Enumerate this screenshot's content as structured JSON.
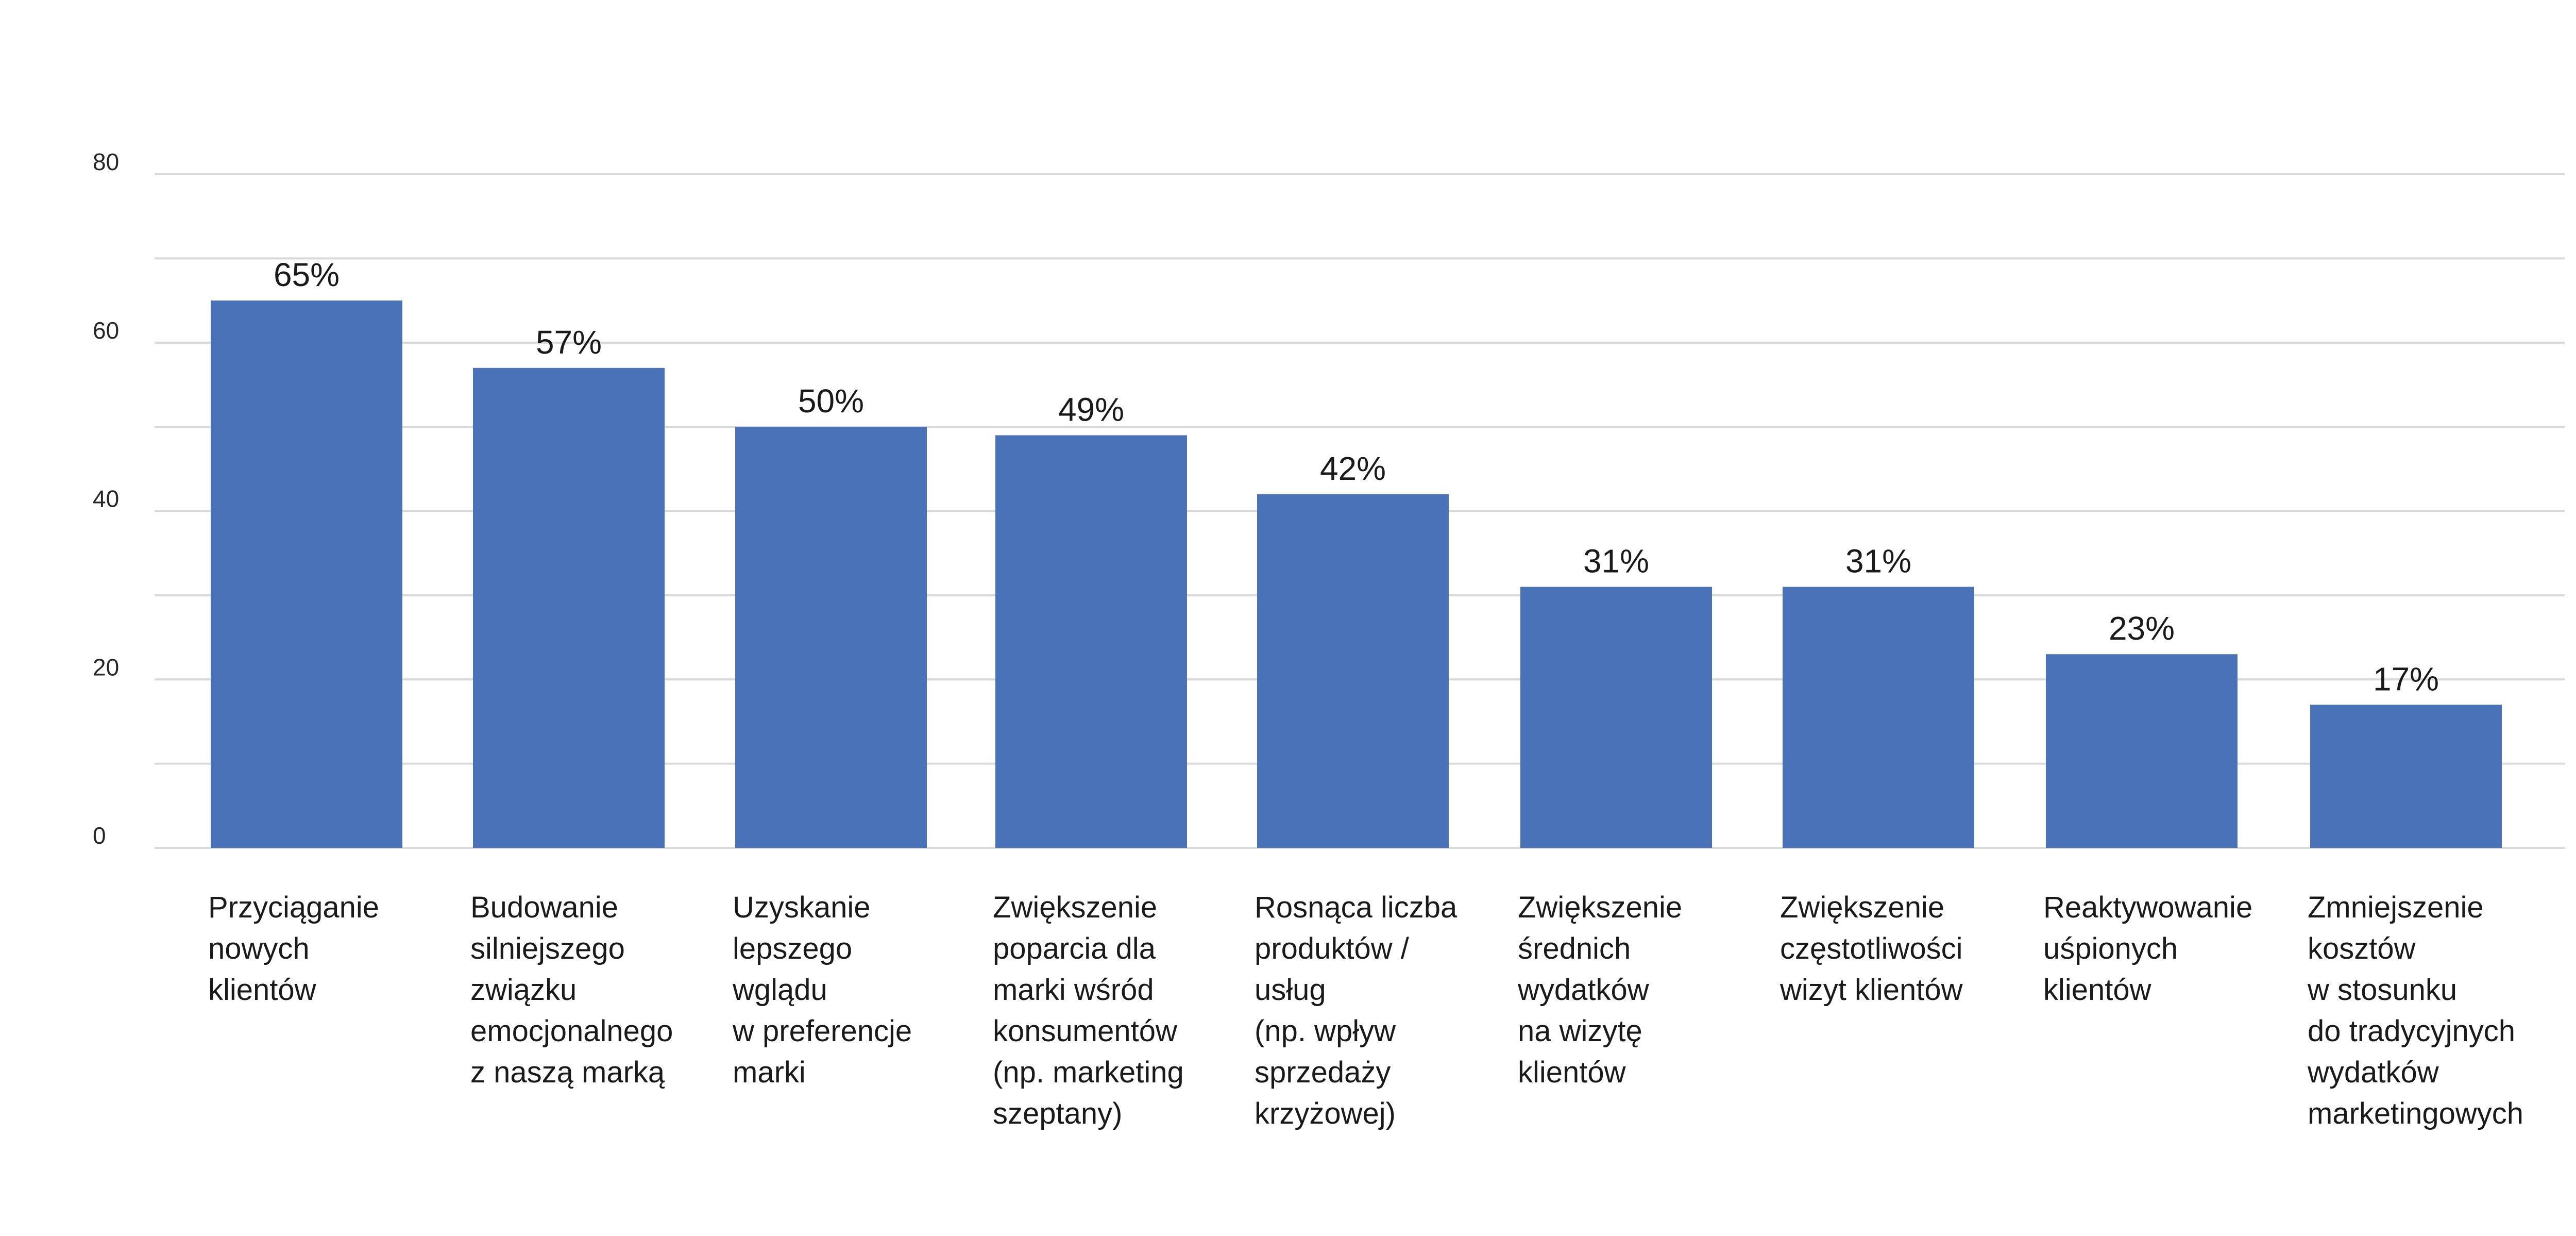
{
  "chart_data": {
    "type": "bar",
    "categories": [
      [
        "Przyciąganie",
        "nowych",
        "klientów"
      ],
      [
        "Budowanie",
        "silniejszego",
        "związku",
        "emocjonalnego",
        "z naszą marką"
      ],
      [
        "Uzyskanie",
        "lepszego",
        "wglądu",
        "w preferencje",
        "marki"
      ],
      [
        "Zwiększenie",
        "poparcia dla",
        "marki wśród",
        "konsumentów",
        "(np. marketing",
        "szeptany)"
      ],
      [
        "Rosnąca liczba",
        "produktów /",
        "usług",
        "(np. wpływ",
        "sprzedaży",
        "krzyżowej)"
      ],
      [
        "Zwiększenie",
        "średnich",
        "wydatków",
        "na wizytę",
        "klientów"
      ],
      [
        "Zwiększenie",
        "częstotliwości",
        "wizyt klientów"
      ],
      [
        "Reaktywowanie",
        "uśpionych",
        "klientów"
      ],
      [
        "Zmniejszenie",
        "kosztów",
        "w stosunku",
        "do tradycyjnych",
        "wydatków",
        "marketingowych"
      ]
    ],
    "values": [
      65,
      57,
      50,
      49,
      42,
      31,
      31,
      23,
      17
    ],
    "data_labels": [
      "65%",
      "57%",
      "50%",
      "49%",
      "42%",
      "31%",
      "31%",
      "23%",
      "17%"
    ],
    "y_ticks": [
      0,
      20,
      40,
      60,
      80
    ],
    "ylim": [
      0,
      80
    ],
    "grid_step": 10,
    "grid": true,
    "bar_color": "#4a72b8",
    "grid_color": "#d9d9d9"
  }
}
